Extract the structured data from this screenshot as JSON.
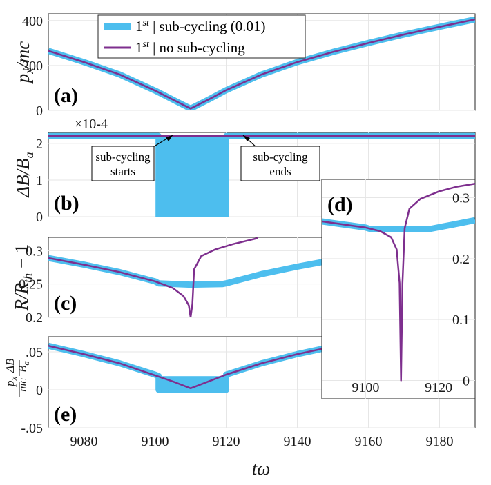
{
  "colors": {
    "sub": "#4DBEEE",
    "nosub": "#7E2F8E",
    "axis": "#262626",
    "grid": "#e6e6e6"
  },
  "legend": {
    "entry1": "1st | sub-cycling (0.01)",
    "entry2": "1st | no sub-cycling"
  },
  "annotations": {
    "starts_line1": "sub-cycling",
    "starts_line2": "starts",
    "ends_line1": "sub-cycling",
    "ends_line2": "ends"
  },
  "chart_data": [
    {
      "panel": "(a)",
      "type": "line",
      "ylabel": "p_x/mc",
      "xlim": [
        9070,
        9190
      ],
      "ylim": [
        0,
        430
      ],
      "yticks": [
        0,
        200,
        400
      ],
      "ytick_labels": [
        "0",
        "200",
        "400"
      ],
      "series": [
        {
          "name": "1st | sub-cycling (0.01)",
          "x": [
            9070,
            9080,
            9090,
            9100,
            9105,
            9110,
            9115,
            9120,
            9130,
            9140,
            9150,
            9160,
            9170,
            9180,
            9190
          ],
          "y": [
            265,
            215,
            160,
            88,
            48,
            8,
            48,
            90,
            160,
            215,
            260,
            300,
            338,
            372,
            405
          ]
        },
        {
          "name": "1st | no sub-cycling",
          "x": [
            9070,
            9080,
            9090,
            9100,
            9105,
            9110,
            9115,
            9120,
            9130,
            9140,
            9150,
            9160,
            9170,
            9180,
            9190
          ],
          "y": [
            265,
            215,
            160,
            88,
            48,
            8,
            48,
            90,
            160,
            215,
            260,
            300,
            338,
            372,
            405
          ]
        }
      ]
    },
    {
      "panel": "(b)",
      "type": "line",
      "ylabel": "ΔB/B_a",
      "scale_label": "×10-4",
      "xlim": [
        9070,
        9190
      ],
      "ylim": [
        0,
        2.3
      ],
      "yticks": [
        0,
        1,
        2
      ],
      "ytick_labels": [
        "0",
        "1",
        "2"
      ],
      "series": [
        {
          "name": "1st | sub-cycling (0.01)",
          "x": [
            9070,
            9101,
            9101,
            9120,
            9120,
            9190
          ],
          "y": [
            2.2,
            2.2,
            0,
            0,
            2.2,
            2.2
          ]
        },
        {
          "name": "1st | no sub-cycling",
          "x": [
            9070,
            9190
          ],
          "y": [
            2.2,
            2.2
          ]
        }
      ]
    },
    {
      "panel": "(c)",
      "type": "line",
      "ylabel": "R/R_th − 1",
      "xlim": [
        9070,
        9190
      ],
      "ylim": [
        0.2,
        0.32
      ],
      "yticks": [
        0.2,
        0.25,
        0.3
      ],
      "ytick_labels": [
        "0.2",
        "0.25",
        "0.3"
      ],
      "series": [
        {
          "name": "1st | sub-cycling (0.01)",
          "x": [
            9070,
            9080,
            9090,
            9100,
            9101,
            9110,
            9119,
            9120,
            9130,
            9140,
            9150
          ],
          "y": [
            0.289,
            0.279,
            0.268,
            0.254,
            0.251,
            0.249,
            0.25,
            0.251,
            0.265,
            0.276,
            0.286
          ]
        },
        {
          "name": "1st | no sub-cycling",
          "x": [
            9070,
            9080,
            9090,
            9100,
            9105,
            9108,
            9109.5,
            9110,
            9110.5,
            9111,
            9113,
            9117,
            9122,
            9129
          ],
          "y": [
            0.289,
            0.279,
            0.268,
            0.254,
            0.244,
            0.232,
            0.218,
            0.2,
            0.22,
            0.272,
            0.292,
            0.302,
            0.31,
            0.319
          ]
        }
      ]
    },
    {
      "panel": "(d)",
      "type": "line",
      "inset": true,
      "xlim": [
        9088,
        9130
      ],
      "ylim": [
        -0.03,
        0.33
      ],
      "yticks": [
        0,
        0.1,
        0.2,
        0.3
      ],
      "ytick_labels": [
        "0",
        "0.1",
        "0.2",
        "0.3"
      ],
      "xticks": [
        9100,
        9120
      ],
      "xtick_labels": [
        "9100",
        "9120"
      ],
      "series": [
        {
          "name": "1st | sub-cycling (0.01)",
          "x": [
            9088,
            9094,
            9100,
            9101,
            9110,
            9118,
            9124,
            9130
          ],
          "y": [
            0.261,
            0.256,
            0.251,
            0.249,
            0.248,
            0.249,
            0.256,
            0.263
          ]
        },
        {
          "name": "1st | no sub-cycling",
          "x": [
            9088,
            9094,
            9100,
            9104,
            9107,
            9108.5,
            9109.3,
            9109.7,
            9110.1,
            9110.7,
            9112,
            9115,
            9120,
            9125,
            9130
          ],
          "y": [
            0.261,
            0.256,
            0.251,
            0.245,
            0.235,
            0.215,
            0.16,
            0.0,
            0.16,
            0.25,
            0.282,
            0.298,
            0.31,
            0.318,
            0.323
          ]
        }
      ]
    },
    {
      "panel": "(e)",
      "type": "line",
      "ylabel": "(p_x/mc)(ΔB/B_a)",
      "xlim": [
        9070,
        9190
      ],
      "ylim": [
        -0.05,
        0.07
      ],
      "yticks": [
        -0.05,
        0,
        0.05
      ],
      "ytick_labels": [
        "-.05",
        "0",
        ".05"
      ],
      "xticks": [
        9080,
        9100,
        9120,
        9140,
        9160,
        9180
      ],
      "xtick_labels": [
        "9080",
        "9100",
        "9120",
        "9140",
        "9160",
        "9180"
      ],
      "xlabel": "tω",
      "series": [
        {
          "name": "1st | sub-cycling (0.01)",
          "x": [
            9070,
            9080,
            9090,
            9100,
            9101,
            9101,
            9110,
            9120,
            9120,
            9130,
            9140,
            9150
          ],
          "y": [
            0.058,
            0.047,
            0.035,
            0.02,
            0.018,
            0,
            0,
            0,
            0.02,
            0.035,
            0.047,
            0.057
          ]
        },
        {
          "name": "1st | no sub-cycling",
          "x": [
            9070,
            9080,
            9090,
            9100,
            9105,
            9110,
            9115,
            9120,
            9130,
            9140,
            9150
          ],
          "y": [
            0.058,
            0.047,
            0.035,
            0.019,
            0.011,
            0.002,
            0.011,
            0.02,
            0.035,
            0.047,
            0.057
          ]
        }
      ]
    }
  ]
}
